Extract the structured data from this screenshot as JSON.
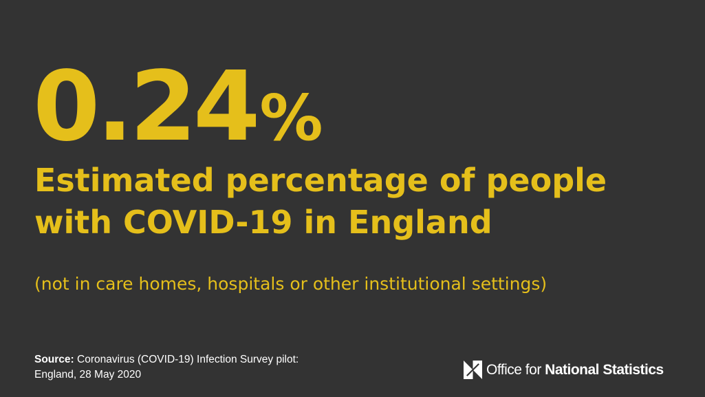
{
  "colors": {
    "background": "#333333",
    "accent": "#e5bf1b",
    "text_light": "#ffffff"
  },
  "stat": {
    "value": "0.24",
    "unit": "%"
  },
  "headline": {
    "line1": "Estimated percentage of people",
    "line2": "with COVID-19 in England"
  },
  "qualifier": "(not in care homes, hospitals or other institutional settings)",
  "source": {
    "label": "Source:",
    "text_line1": " Coronavirus (COVID-19) Infection Survey pilot:",
    "text_line2": "England, 28 May 2020"
  },
  "logo": {
    "icon": "ons-logo-icon",
    "text_regular": "Office for ",
    "text_bold": "National Statistics"
  }
}
